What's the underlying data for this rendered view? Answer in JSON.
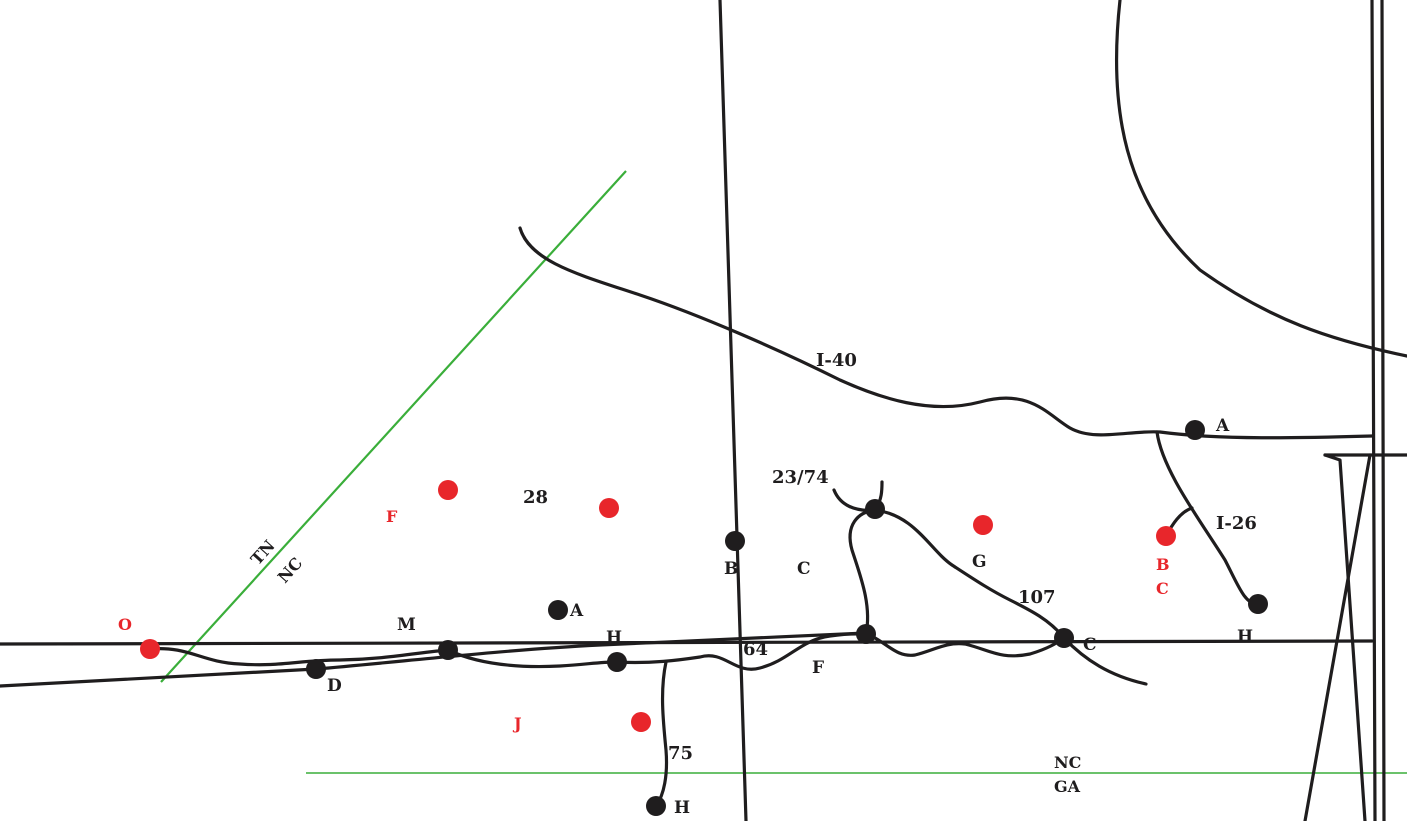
{
  "colors": {
    "road": "#1f1d1e",
    "border": "#3aae3a",
    "black_marker": "#1f1d1e",
    "red_marker": "#e8262b"
  },
  "routes": {
    "i40": "I-40",
    "i26": "I-26",
    "r23_74": "23/74",
    "r28": "28",
    "r107": "107",
    "r64": "64",
    "r75": "75"
  },
  "borders": {
    "tn": "TN",
    "nc_west": "NC",
    "nc_south": "NC",
    "ga": "GA"
  },
  "places": {
    "a_east": "A",
    "a_center": "A",
    "b_center": "B",
    "c_center": "C",
    "g_center": "G",
    "c_south_east": "C",
    "h_east": "H",
    "h_center": "H",
    "f_south": "F",
    "m_west": "M",
    "d_west": "D",
    "h_south": "H"
  },
  "red_places": {
    "o_west": "O",
    "f_north": "F",
    "j_south": "J",
    "b_east": "B",
    "c_east": "C"
  }
}
